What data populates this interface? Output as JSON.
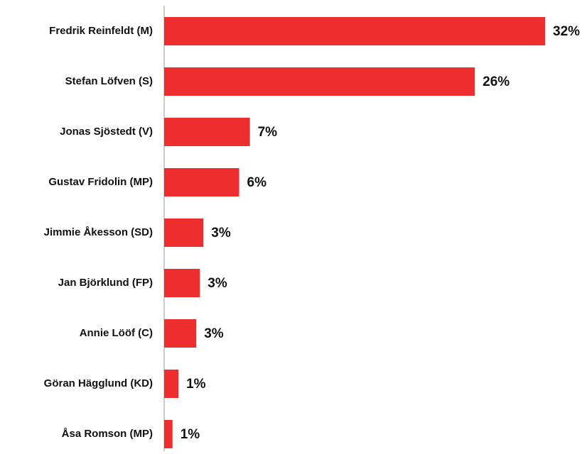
{
  "chart_data": {
    "type": "bar",
    "orientation": "horizontal",
    "categories": [
      "Fredrik Reinfeldt (M)",
      "Stefan Löfven (S)",
      "Jonas Sjöstedt (V)",
      "Gustav Fridolin (MP)",
      "Jimmie Åkesson (SD)",
      "Jan Björklund (FP)",
      "Annie Lööf (C)",
      "Göran Hägglund (KD)",
      "Åsa Romson (MP)"
    ],
    "values": [
      32,
      26.1,
      7.2,
      6.3,
      3.3,
      3.0,
      2.7,
      1.2,
      0.7
    ],
    "value_labels": [
      "32%",
      "26%",
      "7%",
      "6%",
      "3%",
      "3%",
      "3%",
      "1%",
      "1%"
    ],
    "color": "#ee2e2e",
    "xlim": [
      0,
      32
    ]
  }
}
